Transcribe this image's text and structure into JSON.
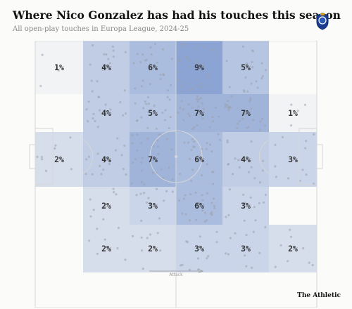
{
  "title": "Where Nico Gonzalez has had his touches this season",
  "subtitle": "All open-play touches in Europa League, 2024-25",
  "club_crest_icon": "fc-porto-crest-icon",
  "attack_label": "Attack",
  "brand": "The Athletic",
  "colors": {
    "zone_base": "#5b7fc3",
    "pitch_line": "#d6d6d6",
    "background": "#fbfbf9",
    "touch_dot": "#9aa0ad"
  },
  "zones": [
    {
      "label": "1%",
      "value": 1
    },
    {
      "label": "4%",
      "value": 4
    },
    {
      "label": "6%",
      "value": 6
    },
    {
      "label": "9%",
      "value": 9
    },
    {
      "label": "5%",
      "value": 5
    },
    {
      "label": "",
      "value": 0
    },
    {
      "label": "",
      "value": 0
    },
    {
      "label": "4%",
      "value": 4
    },
    {
      "label": "5%",
      "value": 5
    },
    {
      "label": "7%",
      "value": 7
    },
    {
      "label": "7%",
      "value": 7
    },
    {
      "label": "1%",
      "value": 1
    },
    {
      "label": "2%",
      "value": 2
    },
    {
      "label": "4%",
      "value": 4
    },
    {
      "label": "7%",
      "value": 7
    },
    {
      "label": "6%",
      "value": 6
    },
    {
      "label": "4%",
      "value": 4
    },
    {
      "label": "3%",
      "value": 3
    },
    {
      "label": "",
      "value": 0
    },
    {
      "label": "2%",
      "value": 2
    },
    {
      "label": "3%",
      "value": 3
    },
    {
      "label": "6%",
      "value": 6
    },
    {
      "label": "3%",
      "value": 3
    },
    {
      "label": "",
      "value": 0
    },
    {
      "label": "",
      "value": 0
    },
    {
      "label": "2%",
      "value": 2
    },
    {
      "label": "2%",
      "value": 2
    },
    {
      "label": "3%",
      "value": 3
    },
    {
      "label": "3%",
      "value": 3
    },
    {
      "label": "2%",
      "value": 2
    }
  ]
}
